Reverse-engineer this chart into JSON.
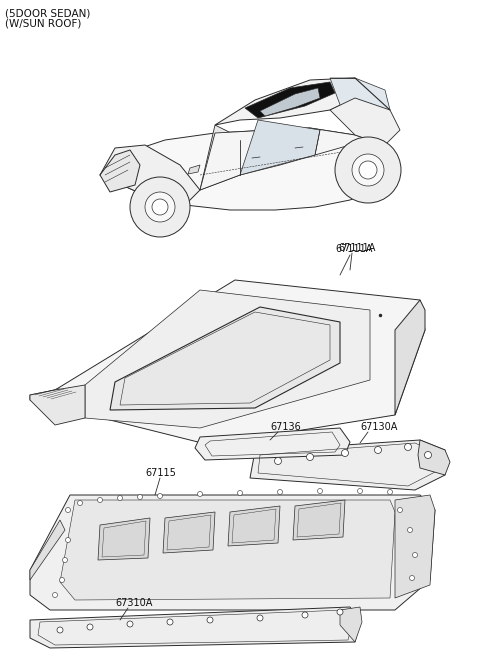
{
  "title_line1": "(5DOOR SEDAN)",
  "title_line2": "(W/SUN ROOF)",
  "bg_color": "#ffffff",
  "lc": "#2a2a2a",
  "lw": 0.7,
  "font_size_title": 7.5,
  "font_size_label": 7.0,
  "label_67111A": "67111A",
  "label_67136": "67136",
  "label_67130A": "67130A",
  "label_67115": "67115",
  "label_67310A": "67310A"
}
